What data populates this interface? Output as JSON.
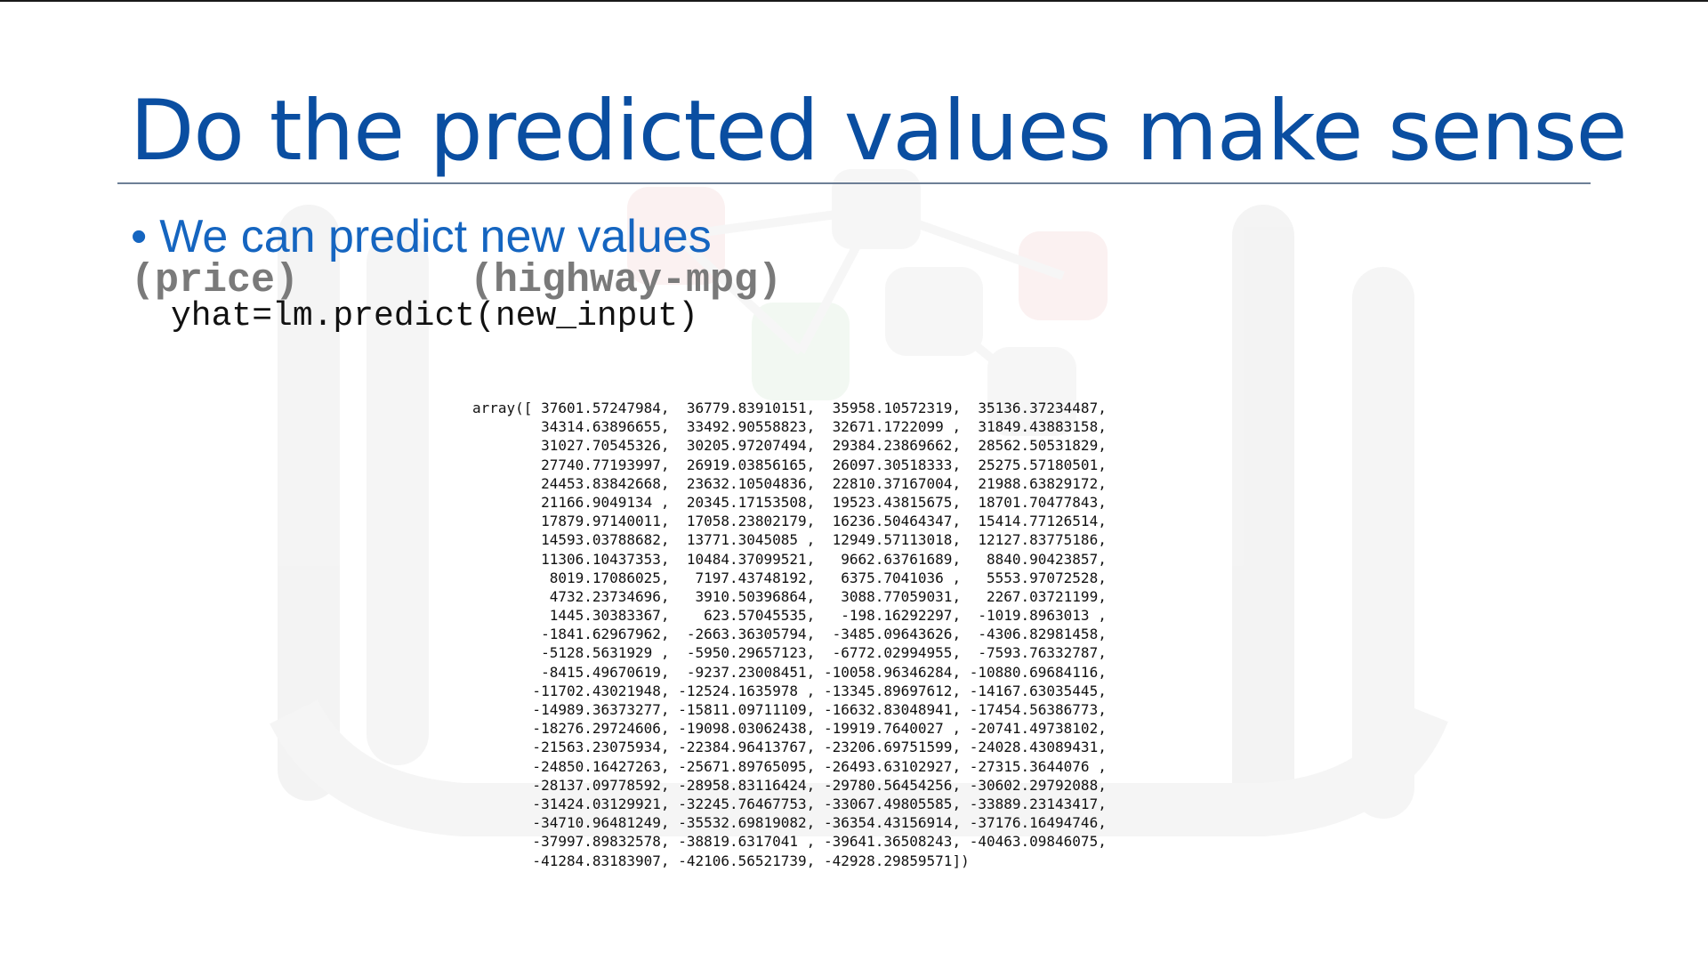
{
  "slide": {
    "title": "Do the predicted values make sense",
    "bullet_marker": "•",
    "bullet_text": "We can predict  new values",
    "param_price": "(price)",
    "param_mpg": "(highway-mpg)",
    "code_line": "yhat=lm.predict(new_input)"
  },
  "output": {
    "lines": [
      "array([ 37601.57247984,  36779.83910151,  35958.10572319,  35136.37234487,",
      "        34314.63896655,  33492.90558823,  32671.1722099 ,  31849.43883158,",
      "        31027.70545326,  30205.97207494,  29384.23869662,  28562.50531829,",
      "        27740.77193997,  26919.03856165,  26097.30518333,  25275.57180501,",
      "        24453.83842668,  23632.10504836,  22810.37167004,  21988.63829172,",
      "        21166.9049134 ,  20345.17153508,  19523.43815675,  18701.70477843,",
      "        17879.97140011,  17058.23802179,  16236.50464347,  15414.77126514,",
      "        14593.03788682,  13771.3045085 ,  12949.57113018,  12127.83775186,",
      "        11306.10437353,  10484.37099521,   9662.63761689,   8840.90423857,",
      "         8019.17086025,   7197.43748192,   6375.7041036 ,   5553.97072528,",
      "         4732.23734696,   3910.50396864,   3088.77059031,   2267.03721199,",
      "         1445.30383367,    623.57045535,   -198.16292297,  -1019.8963013 ,",
      "        -1841.62967962,  -2663.36305794,  -3485.09643626,  -4306.82981458,",
      "        -5128.5631929 ,  -5950.29657123,  -6772.02994955,  -7593.76332787,",
      "        -8415.49670619,  -9237.23008451, -10058.96346284, -10880.69684116,",
      "       -11702.43021948, -12524.1635978 , -13345.89697612, -14167.63035445,",
      "       -14989.36373277, -15811.09711109, -16632.83048941, -17454.56386773,",
      "       -18276.29724606, -19098.03062438, -19919.7640027 , -20741.49738102,",
      "       -21563.23075934, -22384.96413767, -23206.69751599, -24028.43089431,",
      "       -24850.16427263, -25671.89765095, -26493.63102927, -27315.3644076 ,",
      "       -28137.09778592, -28958.83116424, -29780.56454256, -30602.29792088,",
      "       -31424.03129921, -32245.76467753, -33067.49805585, -33889.23143417,",
      "       -34710.96481249, -35532.69819082, -36354.43156914, -37176.16494746,",
      "       -37997.89832578, -38819.6317041 , -39641.36508243, -40463.09846075,",
      "       -41284.83183907, -42106.56521739, -42928.29859571])"
    ]
  },
  "colors": {
    "title": "#0a4ea1",
    "bullet": "#1565c0",
    "param": "#7a7a7a",
    "code": "#111111",
    "watermark": "#ededed"
  }
}
